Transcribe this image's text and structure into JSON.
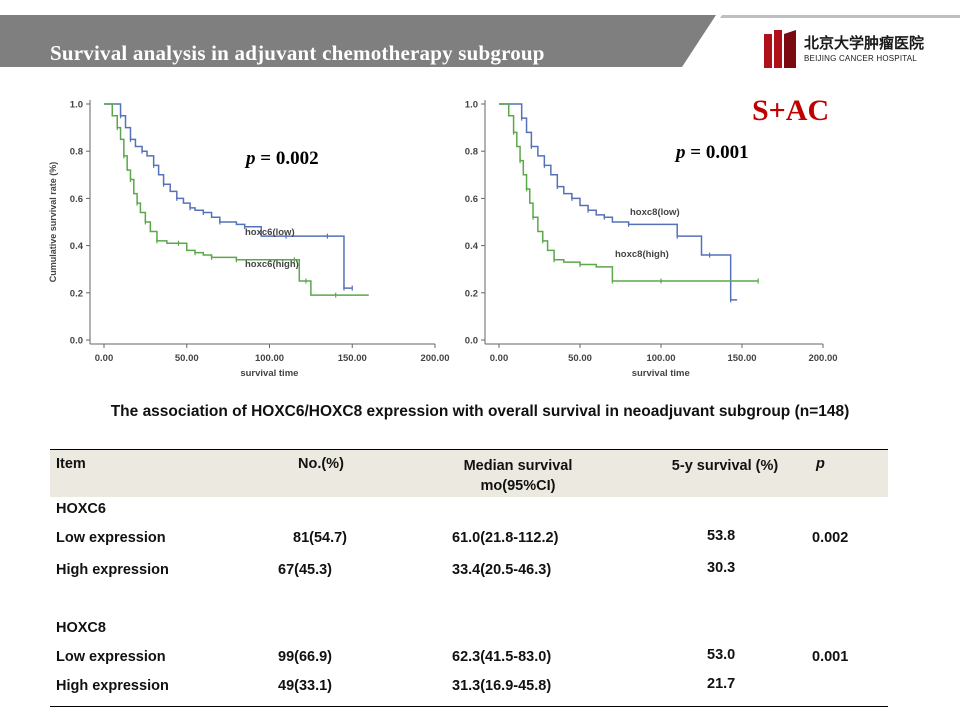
{
  "header": {
    "title": "Survival analysis in adjuvant chemotherapy subgroup",
    "logo_cn": "北京大学肿瘤医院",
    "logo_en": "BEIJING CANCER HOSPITAL",
    "banner_color": "#7f7f7f"
  },
  "tag": "S+AC",
  "p_values": [
    {
      "label": "p",
      "text": "= 0.002"
    },
    {
      "label": "p",
      "text": "= 0.001"
    }
  ],
  "chart_data": [
    {
      "type": "line",
      "xlabel": "survival time",
      "ylabel": "Cumulative survival rate (%)",
      "xlim": [
        0,
        200
      ],
      "ylim": [
        0,
        1.0
      ],
      "x_ticks": [
        "0.00",
        "50.00",
        "100.00",
        "150.00",
        "200.00"
      ],
      "y_ticks": [
        "0.0",
        "0.2",
        "0.4",
        "0.6",
        "0.8",
        "1.0"
      ],
      "grid": false,
      "series": [
        {
          "name": "hoxc6(low)",
          "color": "#5572b8",
          "x": [
            0,
            8,
            10,
            13,
            16,
            19,
            23,
            26,
            30,
            33,
            36,
            40,
            44,
            48,
            52,
            55,
            60,
            65,
            70,
            80,
            85,
            95,
            110,
            120,
            135,
            143,
            145,
            147,
            150
          ],
          "y": [
            1.0,
            1.0,
            0.95,
            0.9,
            0.85,
            0.82,
            0.8,
            0.78,
            0.74,
            0.7,
            0.66,
            0.63,
            0.6,
            0.58,
            0.56,
            0.55,
            0.54,
            0.52,
            0.5,
            0.49,
            0.48,
            0.44,
            0.44,
            0.44,
            0.44,
            0.44,
            0.22,
            0.22,
            0.22
          ]
        },
        {
          "name": "hoxc6(high)",
          "color": "#5aa84a",
          "x": [
            0,
            5,
            8,
            10,
            12,
            14,
            16,
            18,
            20,
            22,
            25,
            28,
            32,
            38,
            45,
            50,
            55,
            60,
            65,
            70,
            80,
            100,
            115,
            118,
            122,
            125,
            140,
            160
          ],
          "y": [
            1.0,
            0.95,
            0.9,
            0.85,
            0.78,
            0.72,
            0.68,
            0.62,
            0.58,
            0.54,
            0.5,
            0.46,
            0.42,
            0.41,
            0.41,
            0.38,
            0.37,
            0.36,
            0.35,
            0.35,
            0.34,
            0.34,
            0.34,
            0.25,
            0.25,
            0.19,
            0.19,
            0.19
          ]
        }
      ],
      "annotations": [
        "hoxc6(low)",
        "hoxc6(high)"
      ]
    },
    {
      "type": "line",
      "xlabel": "survival time",
      "ylabel": "",
      "xlim": [
        0,
        200
      ],
      "ylim": [
        0,
        1.0
      ],
      "x_ticks": [
        "0.00",
        "50.00",
        "100.00",
        "150.00",
        "200.00"
      ],
      "y_ticks": [
        "0.0",
        "0.2",
        "0.4",
        "0.6",
        "0.8",
        "1.0"
      ],
      "grid": false,
      "series": [
        {
          "name": "hoxc8(low)",
          "color": "#5572b8",
          "x": [
            0,
            12,
            14,
            17,
            20,
            24,
            28,
            32,
            36,
            40,
            45,
            50,
            55,
            60,
            65,
            70,
            80,
            100,
            110,
            125,
            130,
            140,
            143,
            147
          ],
          "y": [
            1.0,
            1.0,
            0.94,
            0.88,
            0.82,
            0.78,
            0.74,
            0.7,
            0.65,
            0.62,
            0.6,
            0.57,
            0.55,
            0.53,
            0.52,
            0.5,
            0.49,
            0.49,
            0.44,
            0.36,
            0.36,
            0.36,
            0.17,
            0.17
          ]
        },
        {
          "name": "hoxc8(high)",
          "color": "#5aa84a",
          "x": [
            0,
            6,
            9,
            11,
            13,
            15,
            17,
            19,
            21,
            24,
            27,
            30,
            34,
            40,
            50,
            60,
            70,
            80,
            100,
            130,
            160
          ],
          "y": [
            1.0,
            0.95,
            0.88,
            0.82,
            0.76,
            0.7,
            0.64,
            0.58,
            0.52,
            0.46,
            0.42,
            0.38,
            0.34,
            0.33,
            0.32,
            0.31,
            0.25,
            0.25,
            0.25,
            0.25,
            0.25
          ]
        }
      ],
      "annotations": [
        "hoxc8(low)",
        "hoxc8(high)"
      ]
    }
  ],
  "table": {
    "title": "The association of HOXC6/HOXC8  expression with overall survival  in neoadjuvant subgroup (n=148)",
    "headers": [
      "Item",
      "No.(%)",
      "Median survival mo(95%CI)",
      "5-y survival (%)",
      "p"
    ],
    "groups": [
      {
        "name": "HOXC6",
        "rows": [
          [
            "Low expression",
            "81(54.7)",
            "61.0(21.8-112.2)",
            "53.8",
            "0.002"
          ],
          [
            "High expression",
            "67(45.3)",
            "33.4(20.5-46.3)",
            "30.3",
            ""
          ]
        ]
      },
      {
        "name": "HOXC8",
        "rows": [
          [
            "Low expression",
            "99(66.9)",
            "62.3(41.5-83.0)",
            "53.0",
            "0.001"
          ],
          [
            "High expression",
            "49(33.1)",
            "31.3(16.9-45.8)",
            "21.7",
            ""
          ]
        ]
      }
    ]
  }
}
